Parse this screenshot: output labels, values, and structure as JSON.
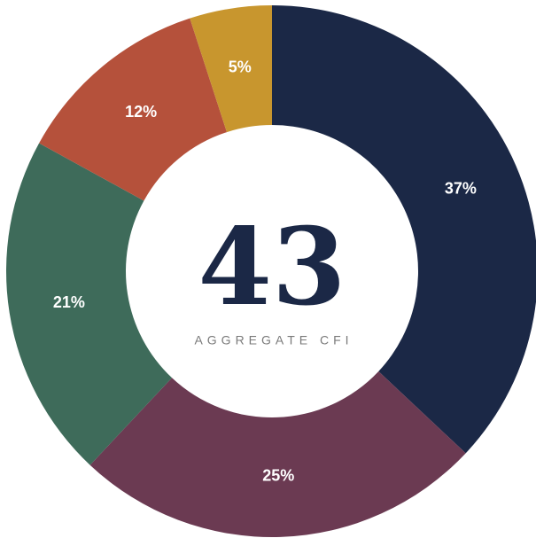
{
  "chart_data": {
    "type": "donut",
    "center_value": 43,
    "center_label": "AGGREGATE CFI",
    "values": [
      37,
      25,
      21,
      12,
      5
    ],
    "value_labels": [
      "37%",
      "25%",
      "21%",
      "12%",
      "5%"
    ],
    "colors": [
      "#1b2846",
      "#6b3a52",
      "#3e6b5a",
      "#b5513b",
      "#c8962e"
    ]
  }
}
